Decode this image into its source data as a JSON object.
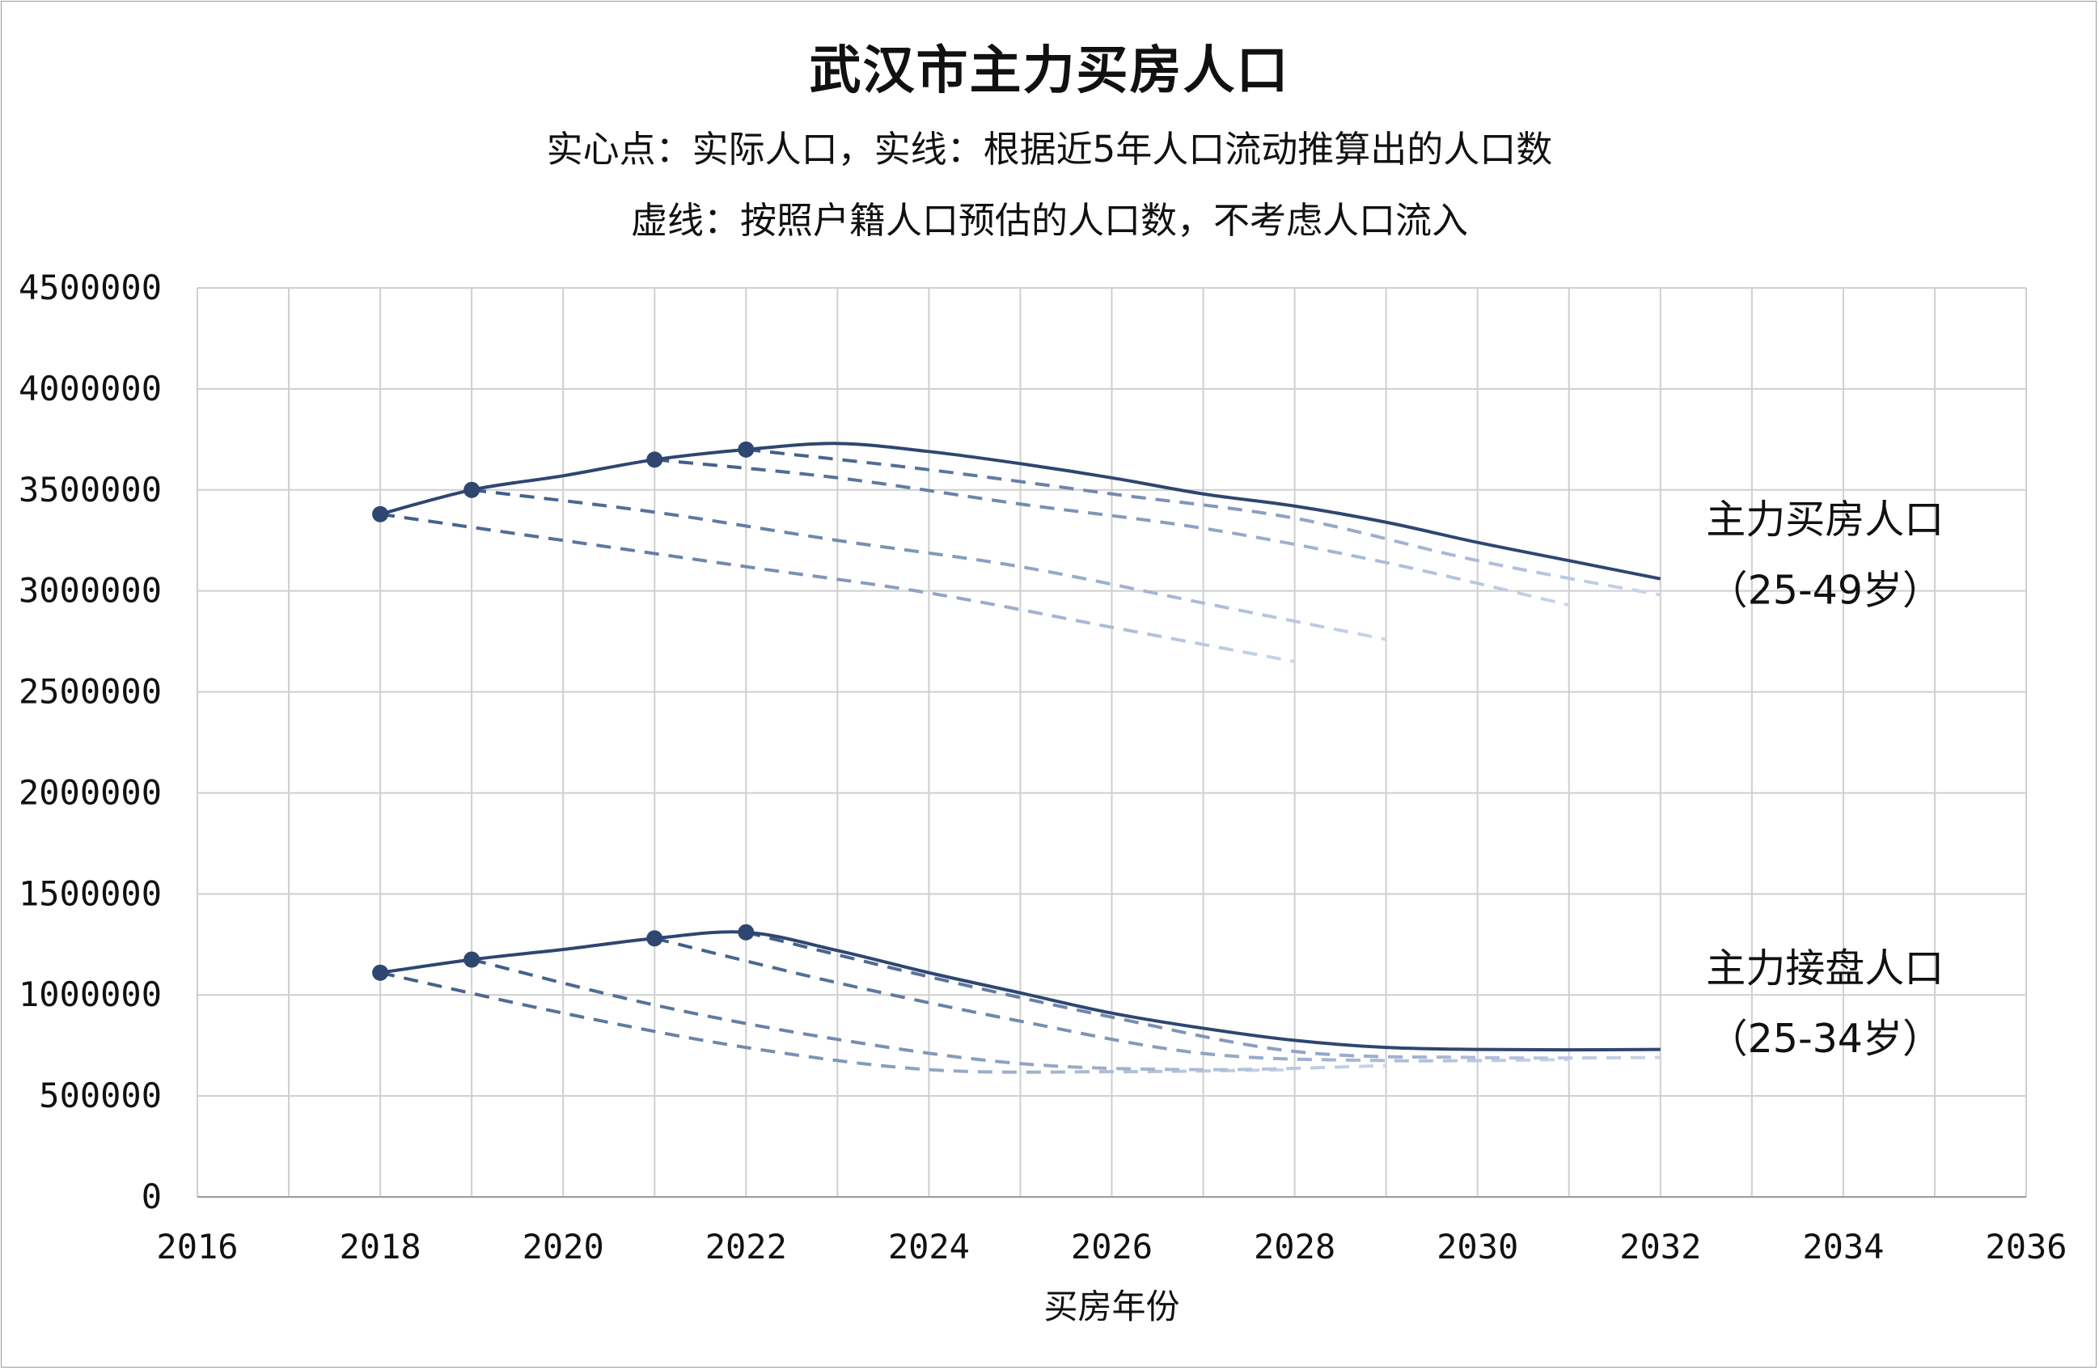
{
  "chart_data": {
    "type": "line",
    "title": "武汉市主力买房人口",
    "subtitle_lines": [
      "实心点：实际人口，实线：根据近5年人口流动推算出的人口数",
      "虚线：按照户籍人口预估的人口数，不考虑人口流入"
    ],
    "xlabel": "买房年份",
    "ylabel": "",
    "xlim": [
      2016,
      2036
    ],
    "ylim": [
      0,
      4500000
    ],
    "x_ticks": [
      2016,
      2018,
      2020,
      2022,
      2024,
      2026,
      2028,
      2030,
      2032,
      2034,
      2036
    ],
    "y_ticks": [
      0,
      500000,
      1000000,
      1500000,
      2000000,
      2500000,
      3000000,
      3500000,
      4000000,
      4500000
    ],
    "x_grid_step": 1,
    "grid": true,
    "annotations": [
      {
        "lines": [
          "主力买房人口",
          "（25-49岁）"
        ],
        "x": 2033.8,
        "y": 3350000,
        "line_gap": 350000
      },
      {
        "lines": [
          "主力接盘人口",
          "（25-34岁）"
        ],
        "x": 2033.8,
        "y": 1130000,
        "line_gap": 350000
      }
    ],
    "series": [
      {
        "group": "主力买房人口（25-49岁）",
        "kind": "actual",
        "color": "#2e4670",
        "points": [
          [
            2018,
            3380000
          ],
          [
            2019,
            3500000
          ],
          [
            2021,
            3650000
          ],
          [
            2022,
            3700000
          ]
        ]
      },
      {
        "group": "主力买房人口（25-49岁）",
        "kind": "projection",
        "color": "#2e4670",
        "points": [
          [
            2018,
            3380000
          ],
          [
            2019,
            3500000
          ],
          [
            2020,
            3570000
          ],
          [
            2021,
            3650000
          ],
          [
            2022,
            3700000
          ],
          [
            2023,
            3730000
          ],
          [
            2024,
            3690000
          ],
          [
            2025,
            3630000
          ],
          [
            2026,
            3560000
          ],
          [
            2027,
            3480000
          ],
          [
            2028,
            3420000
          ],
          [
            2029,
            3340000
          ],
          [
            2030,
            3240000
          ],
          [
            2031,
            3150000
          ],
          [
            2032,
            3060000
          ]
        ]
      },
      {
        "group": "主力买房人口（25-49岁）",
        "kind": "estimate",
        "start_color": "#3d5a87",
        "end_color": "#c8d5ea",
        "points": [
          [
            2018,
            3380000
          ],
          [
            2020,
            3250000
          ],
          [
            2022,
            3120000
          ],
          [
            2024,
            2990000
          ],
          [
            2026,
            2820000
          ],
          [
            2028,
            2650000
          ]
        ]
      },
      {
        "group": "主力买房人口（25-49岁）",
        "kind": "estimate",
        "start_color": "#3d5a87",
        "end_color": "#c8d5ea",
        "points": [
          [
            2019,
            3500000
          ],
          [
            2021,
            3390000
          ],
          [
            2023,
            3250000
          ],
          [
            2025,
            3120000
          ],
          [
            2027,
            2940000
          ],
          [
            2029,
            2760000
          ]
        ]
      },
      {
        "group": "主力买房人口（25-49岁）",
        "kind": "estimate",
        "start_color": "#3d5a87",
        "end_color": "#c8d5ea",
        "points": [
          [
            2021,
            3650000
          ],
          [
            2023,
            3560000
          ],
          [
            2025,
            3430000
          ],
          [
            2027,
            3310000
          ],
          [
            2029,
            3140000
          ],
          [
            2031,
            2930000
          ]
        ]
      },
      {
        "group": "主力买房人口（25-49岁）",
        "kind": "estimate",
        "start_color": "#3d5a87",
        "end_color": "#c8d5ea",
        "points": [
          [
            2022,
            3700000
          ],
          [
            2024,
            3600000
          ],
          [
            2026,
            3480000
          ],
          [
            2028,
            3360000
          ],
          [
            2030,
            3150000
          ],
          [
            2032,
            2980000
          ]
        ]
      },
      {
        "group": "主力接盘人口（25-34岁）",
        "kind": "actual",
        "color": "#2e4670",
        "points": [
          [
            2018,
            1110000
          ],
          [
            2019,
            1175000
          ],
          [
            2021,
            1280000
          ],
          [
            2022,
            1310000
          ]
        ]
      },
      {
        "group": "主力接盘人口（25-34岁）",
        "kind": "projection",
        "color": "#2e4670",
        "points": [
          [
            2018,
            1110000
          ],
          [
            2019,
            1175000
          ],
          [
            2020,
            1225000
          ],
          [
            2021,
            1280000
          ],
          [
            2022,
            1310000
          ],
          [
            2023,
            1220000
          ],
          [
            2024,
            1110000
          ],
          [
            2025,
            1010000
          ],
          [
            2026,
            910000
          ],
          [
            2027,
            835000
          ],
          [
            2028,
            775000
          ],
          [
            2029,
            740000
          ],
          [
            2030,
            730000
          ],
          [
            2031,
            728000
          ],
          [
            2032,
            730000
          ]
        ]
      },
      {
        "group": "主力接盘人口（25-34岁）",
        "kind": "estimate",
        "start_color": "#3d5a87",
        "end_color": "#c8d5ea",
        "points": [
          [
            2018,
            1110000
          ],
          [
            2020,
            910000
          ],
          [
            2022,
            740000
          ],
          [
            2024,
            630000
          ],
          [
            2026,
            620000
          ],
          [
            2028,
            630000
          ]
        ]
      },
      {
        "group": "主力接盘人口（25-34岁）",
        "kind": "estimate",
        "start_color": "#3d5a87",
        "end_color": "#c8d5ea",
        "points": [
          [
            2019,
            1175000
          ],
          [
            2021,
            950000
          ],
          [
            2023,
            780000
          ],
          [
            2025,
            660000
          ],
          [
            2027,
            630000
          ],
          [
            2029,
            650000
          ]
        ]
      },
      {
        "group": "主力接盘人口（25-34岁）",
        "kind": "estimate",
        "start_color": "#3d5a87",
        "end_color": "#c8d5ea",
        "points": [
          [
            2021,
            1280000
          ],
          [
            2023,
            1060000
          ],
          [
            2025,
            870000
          ],
          [
            2027,
            710000
          ],
          [
            2029,
            675000
          ],
          [
            2031,
            680000
          ]
        ]
      },
      {
        "group": "主力接盘人口（25-34岁）",
        "kind": "estimate",
        "start_color": "#3d5a87",
        "end_color": "#c8d5ea",
        "points": [
          [
            2022,
            1310000
          ],
          [
            2024,
            1090000
          ],
          [
            2026,
            890000
          ],
          [
            2028,
            720000
          ],
          [
            2030,
            690000
          ],
          [
            2032,
            690000
          ]
        ]
      }
    ]
  }
}
